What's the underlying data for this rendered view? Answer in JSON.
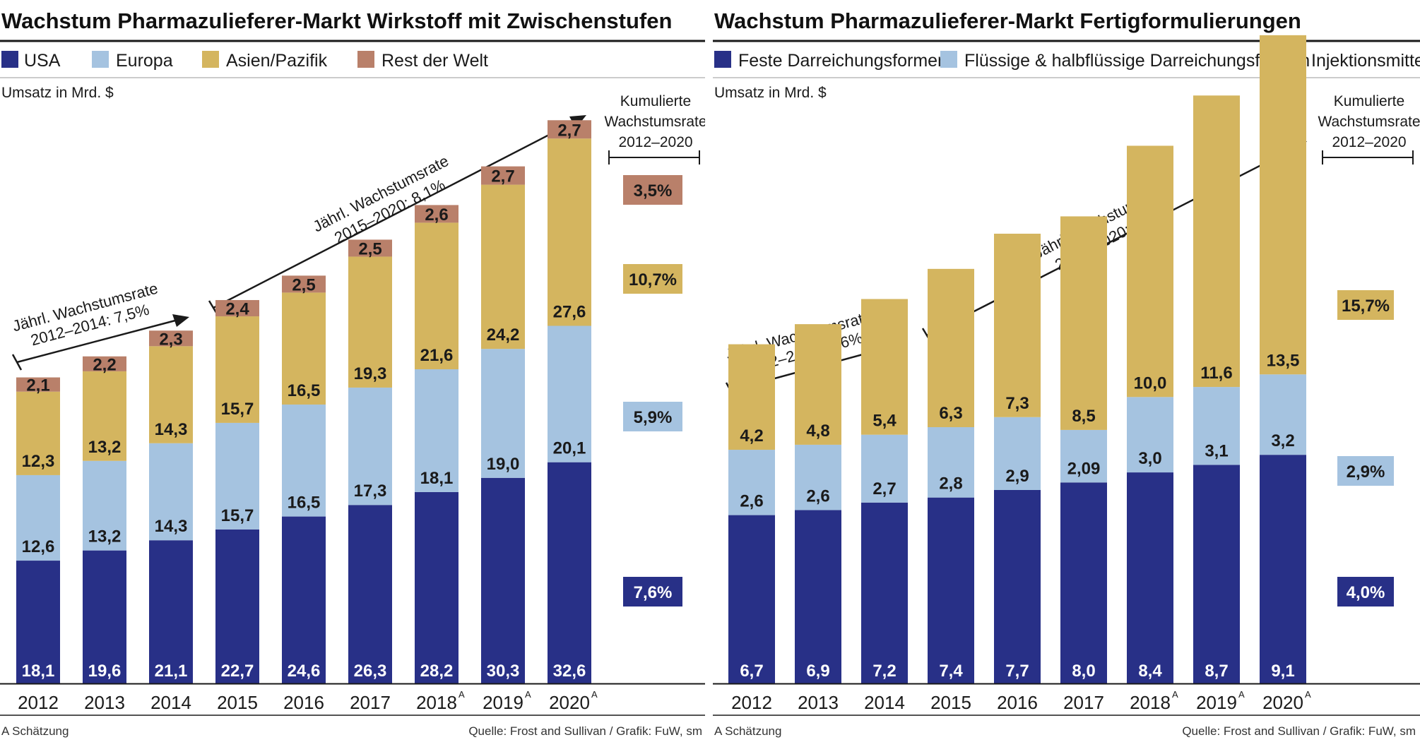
{
  "colors": {
    "usa": "#283087",
    "europa": "#a5c3e0",
    "asien": "#d4b55f",
    "rest": "#b9806a",
    "feste": "#283087",
    "fluessig": "#a5c3e0",
    "injektion": "#d4b55f"
  },
  "left": {
    "title": "Wachstum Pharmazulieferer-Markt Wirkstoff mit Zwischenstufen",
    "unit_label": "Umsatz in Mrd. $",
    "cumulative_header": [
      "Kumulierte",
      "Wachstumsrate",
      "2012–2020"
    ],
    "growth_annotations": [
      {
        "line1": "Jährl. Wachstumsrate",
        "line2": "2012–2014: 7,5%"
      },
      {
        "line1": "Jährl. Wachstumsrate",
        "line2": "2015–2020: 8,1%"
      }
    ],
    "footnote": "A Schätzung",
    "source": "Quelle: Frost and Sullivan / Grafik: FuW, sm"
  },
  "right": {
    "title": "Wachstum Pharmazulieferer-Markt Fertigformulierungen",
    "unit_label": "Umsatz in Mrd. $",
    "cumulative_header": [
      "Kumulierte",
      "Wachstumsrate",
      "2012–2020"
    ],
    "growth_annotations": [
      {
        "line1": "Jährl. Wachstumsrate",
        "line2": "2012–2014: 6,6%"
      },
      {
        "line1": "Jährl. Wachstumsrate",
        "line2": "2015–2020: 9,4%"
      }
    ],
    "footnote": "A Schätzung",
    "source": "Quelle: Frost and Sullivan / Grafik: FuW, sm"
  },
  "chart_data": [
    {
      "type": "bar",
      "stacked": true,
      "title": "Wachstum Pharmazulieferer-Markt Wirkstoff mit Zwischenstufen",
      "ylabel": "Umsatz in Mrd. $",
      "categories": [
        "2012",
        "2013",
        "2014",
        "2015",
        "2016",
        "2017",
        "2018",
        "2019",
        "2020"
      ],
      "category_superscripts": [
        "",
        "",
        "",
        "",
        "",
        "",
        "A",
        "A",
        "A"
      ],
      "series": [
        {
          "name": "USA",
          "color": "#283087",
          "values": [
            18.1,
            19.6,
            21.1,
            22.7,
            24.6,
            26.3,
            28.2,
            30.3,
            32.6
          ],
          "labels": [
            "18,1",
            "19,6",
            "21,1",
            "22,7",
            "24,6",
            "26,3",
            "28,2",
            "30,3",
            "32,6"
          ]
        },
        {
          "name": "Europa",
          "color": "#a5c3e0",
          "values": [
            12.6,
            13.2,
            14.3,
            15.7,
            16.5,
            17.3,
            18.1,
            19.0,
            20.1
          ],
          "labels": [
            "12,6",
            "13,2",
            "14,3",
            "15,7",
            "16,5",
            "17,3",
            "18,1",
            "19,0",
            "20,1"
          ]
        },
        {
          "name": "Asien/Pazifik",
          "color": "#d4b55f",
          "values": [
            12.3,
            13.2,
            14.3,
            15.7,
            16.5,
            19.3,
            21.6,
            24.2,
            27.6
          ],
          "labels": [
            "12,3",
            "13,2",
            "14,3",
            "15,7",
            "16,5",
            "19,3",
            "21,6",
            "24,2",
            "27,6"
          ]
        },
        {
          "name": "Rest der Welt",
          "color": "#b9806a",
          "values": [
            2.1,
            2.2,
            2.3,
            2.4,
            2.5,
            2.5,
            2.6,
            2.7,
            2.7
          ],
          "labels": [
            "2,1",
            "2,2",
            "2,3",
            "2,4",
            "2,5",
            "2,5",
            "2,6",
            "2,7",
            "2,7"
          ]
        }
      ],
      "cumulative_growth": [
        {
          "series": "Rest der Welt",
          "value": "3,5%"
        },
        {
          "series": "Asien/Pazifik",
          "value": "10,7%"
        },
        {
          "series": "Europa",
          "value": "5,9%"
        },
        {
          "series": "USA",
          "value": "7,6%"
        }
      ],
      "ylim": [
        0,
        90
      ],
      "grid": false,
      "legend_position": "top"
    },
    {
      "type": "bar",
      "stacked": true,
      "title": "Wachstum Pharmazulieferer-Markt Fertigformulierungen",
      "ylabel": "Umsatz in Mrd. $",
      "categories": [
        "2012",
        "2013",
        "2014",
        "2015",
        "2016",
        "2017",
        "2018",
        "2019",
        "2020"
      ],
      "category_superscripts": [
        "",
        "",
        "",
        "",
        "",
        "",
        "A",
        "A",
        "A"
      ],
      "series": [
        {
          "name": "Feste Darreichungsformen",
          "color": "#283087",
          "values": [
            6.7,
            6.9,
            7.2,
            7.4,
            7.7,
            8.0,
            8.4,
            8.7,
            9.1
          ],
          "labels": [
            "6,7",
            "6,9",
            "7,2",
            "7,4",
            "7,7",
            "8,0",
            "8,4",
            "8,7",
            "9,1"
          ]
        },
        {
          "name": "Flüssige & halbflüssige Darreichungsformen",
          "color": "#a5c3e0",
          "values": [
            2.6,
            2.6,
            2.7,
            2.8,
            2.9,
            2.09,
            3.0,
            3.1,
            3.2
          ],
          "labels": [
            "2,6",
            "2,6",
            "2,7",
            "2,8",
            "2,9",
            "2,09",
            "3,0",
            "3,1",
            "3,2"
          ]
        },
        {
          "name": "Injektionsmittel",
          "color": "#d4b55f",
          "values": [
            4.2,
            4.8,
            5.4,
            6.3,
            7.3,
            8.5,
            10.0,
            11.6,
            13.5
          ],
          "labels": [
            "4,2",
            "4,8",
            "5,4",
            "6,3",
            "7,3",
            "8,5",
            "10,0",
            "11,6",
            "13,5"
          ]
        }
      ],
      "cumulative_growth": [
        {
          "series": "Injektionsmittel",
          "value": "15,7%"
        },
        {
          "series": "Flüssige & halbflüssige Darreichungsformen",
          "value": "2,9%"
        },
        {
          "series": "Feste Darreichungsformen",
          "value": "4,0%"
        }
      ],
      "ylim": [
        0,
        30
      ],
      "grid": false,
      "legend_position": "top"
    }
  ]
}
